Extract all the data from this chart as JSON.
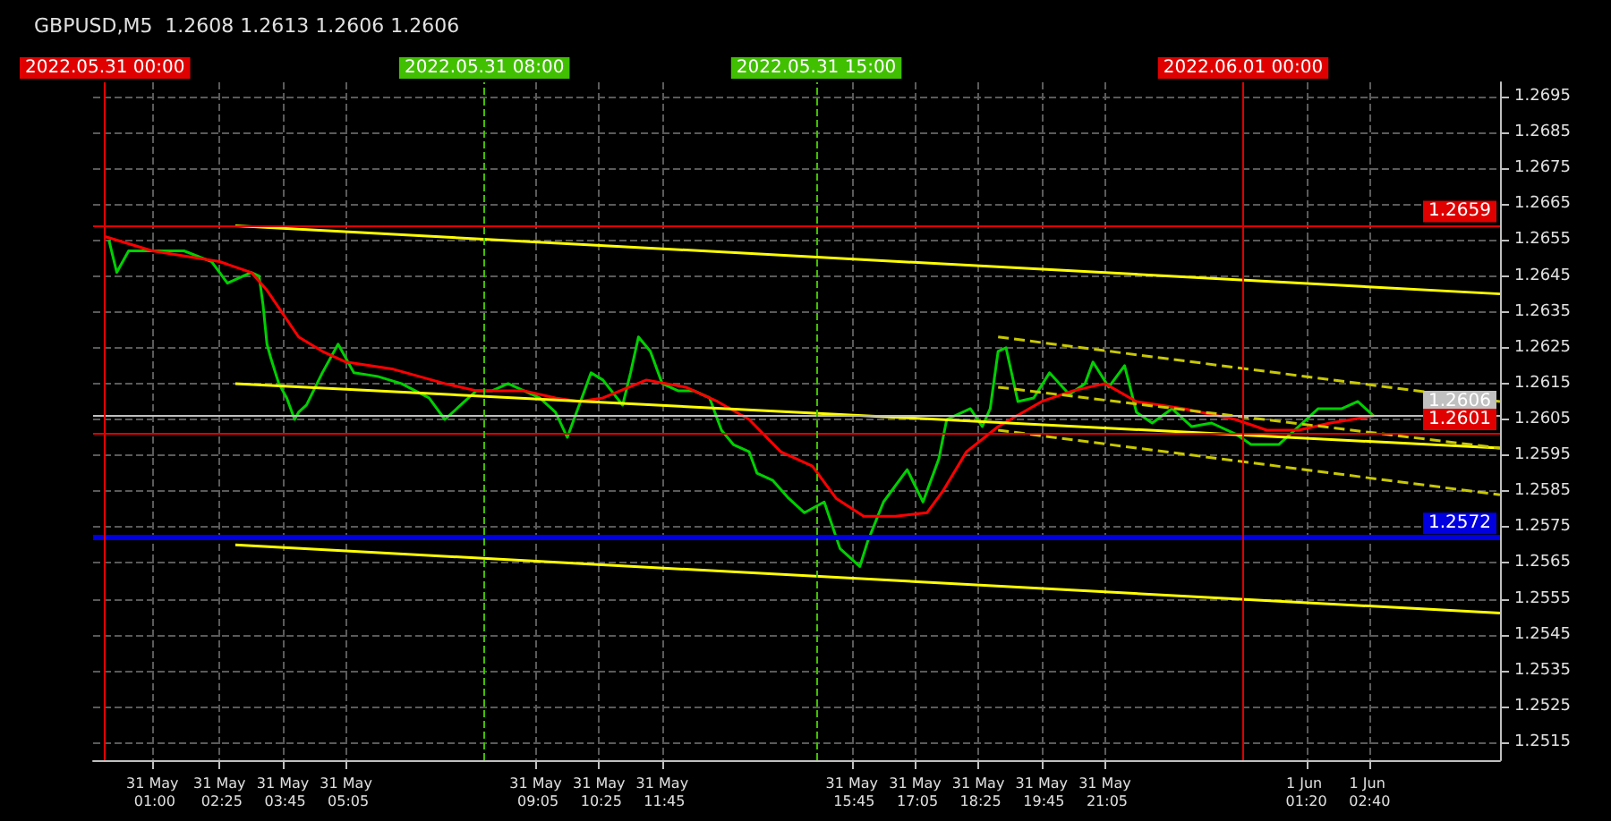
{
  "chart_data": {
    "type": "line",
    "title": "GBPUSD,M5  1.2608 1.2613 1.2606 1.2606",
    "xlim": [
      "2022-05-30T23:45",
      "2022-06-01T05:25"
    ],
    "xticks": [
      {
        "value": "2022-05-31T01:00",
        "label": "31 May 01:00"
      },
      {
        "value": "2022-05-31T02:25",
        "label": "31 May 02:25"
      },
      {
        "value": "2022-05-31T03:45",
        "label": "31 May 03:45"
      },
      {
        "value": "2022-05-31T05:05",
        "label": "31 May 05:05"
      },
      {
        "value": "2022-05-31T09:05",
        "label": "31 May 09:05"
      },
      {
        "value": "2022-05-31T10:25",
        "label": "31 May 10:25"
      },
      {
        "value": "2022-05-31T11:45",
        "label": "31 May 11:45"
      },
      {
        "value": "2022-05-31T15:45",
        "label": "31 May 15:45"
      },
      {
        "value": "2022-05-31T17:05",
        "label": "31 May 17:05"
      },
      {
        "value": "2022-05-31T18:25",
        "label": "31 May 18:25"
      },
      {
        "value": "2022-05-31T19:45",
        "label": "31 May 19:45"
      },
      {
        "value": "2022-05-31T21:05",
        "label": "31 May 21:05"
      },
      {
        "value": "2022-06-01T01:20",
        "label": "1 Jun 01:20"
      },
      {
        "value": "2022-06-01T02:40",
        "label": "1 Jun 02:40"
      }
    ],
    "ylim": [
      1.251,
      1.2699
    ],
    "yticks": [
      1.2515,
      1.2525,
      1.2535,
      1.2545,
      1.2555,
      1.2565,
      1.2575,
      1.2585,
      1.2595,
      1.2605,
      1.2615,
      1.2625,
      1.2635,
      1.2645,
      1.2655,
      1.2665,
      1.2675,
      1.2685,
      1.2695
    ],
    "grid": true,
    "series": [
      {
        "color": "#00d000",
        "x": [
          "2022-05-31T00:05",
          "2022-05-31T00:15",
          "2022-05-31T00:30",
          "2022-05-31T01:00",
          "2022-05-31T01:40",
          "2022-05-31T02:15",
          "2022-05-31T02:35",
          "2022-05-31T02:55",
          "2022-05-31T03:05",
          "2022-05-31T03:15",
          "2022-05-31T03:20",
          "2022-05-31T03:25",
          "2022-05-31T03:30",
          "2022-05-31T03:40",
          "2022-05-31T03:50",
          "2022-05-31T04:00",
          "2022-05-31T04:05",
          "2022-05-31T04:15",
          "2022-05-31T04:35",
          "2022-05-31T04:55",
          "2022-05-31T05:15",
          "2022-05-31T05:45",
          "2022-05-31T06:15",
          "2022-05-31T06:50",
          "2022-05-31T07:10",
          "2022-05-31T07:30",
          "2022-05-31T07:50",
          "2022-05-31T08:10",
          "2022-05-31T08:30",
          "2022-05-31T08:50",
          "2022-05-31T09:10",
          "2022-05-31T09:30",
          "2022-05-31T09:45",
          "2022-05-31T10:00",
          "2022-05-31T10:15",
          "2022-05-31T10:30",
          "2022-05-31T10:55",
          "2022-05-31T11:05",
          "2022-05-31T11:15",
          "2022-05-31T11:30",
          "2022-05-31T11:45",
          "2022-05-31T12:05",
          "2022-05-31T12:25",
          "2022-05-31T12:45",
          "2022-05-31T13:00",
          "2022-05-31T13:15",
          "2022-05-31T13:35",
          "2022-05-31T13:45",
          "2022-05-31T14:05",
          "2022-05-31T14:25",
          "2022-05-31T14:45",
          "2022-05-31T15:10",
          "2022-05-31T15:30",
          "2022-05-31T15:55",
          "2022-05-31T16:05",
          "2022-05-31T16:25",
          "2022-05-31T16:55",
          "2022-05-31T17:15",
          "2022-05-31T17:35",
          "2022-05-31T17:45",
          "2022-05-31T18:15",
          "2022-05-31T18:30",
          "2022-05-31T18:40",
          "2022-05-31T18:50",
          "2022-05-31T19:00",
          "2022-05-31T19:15",
          "2022-05-31T19:35",
          "2022-05-31T19:55",
          "2022-05-31T20:20",
          "2022-05-31T20:40",
          "2022-05-31T20:50",
          "2022-05-31T21:10",
          "2022-05-31T21:30",
          "2022-05-31T21:45",
          "2022-05-31T22:05",
          "2022-05-31T22:30",
          "2022-05-31T22:55",
          "2022-05-31T23:20",
          "2022-05-31T23:50",
          "2022-06-01T00:10",
          "2022-06-01T00:45",
          "2022-06-01T01:10",
          "2022-06-01T01:35",
          "2022-06-01T02:05",
          "2022-06-01T02:25",
          "2022-06-01T02:45"
        ],
        "values": [
          1.2655,
          1.2646,
          1.2652,
          1.2652,
          1.2652,
          1.2649,
          1.2643,
          1.2645,
          1.2646,
          1.2645,
          1.2637,
          1.2626,
          1.2622,
          1.2615,
          1.2611,
          1.2605,
          1.2607,
          1.2609,
          1.2618,
          1.2626,
          1.2618,
          1.2617,
          1.2615,
          1.2611,
          1.2605,
          1.2609,
          1.2613,
          1.2613,
          1.2615,
          1.2613,
          1.2611,
          1.2607,
          1.26,
          1.2609,
          1.2618,
          1.2616,
          1.2609,
          1.2618,
          1.2628,
          1.2624,
          1.2615,
          1.2613,
          1.2613,
          1.2611,
          1.2602,
          1.2598,
          1.2596,
          1.259,
          1.2588,
          1.2583,
          1.2579,
          1.2582,
          1.2569,
          1.2564,
          1.2571,
          1.2582,
          1.2591,
          1.2582,
          1.2594,
          1.2605,
          1.2608,
          1.2603,
          1.2608,
          1.2624,
          1.2625,
          1.261,
          1.2611,
          1.2618,
          1.2612,
          1.2615,
          1.2621,
          1.2614,
          1.262,
          1.2607,
          1.2604,
          1.2608,
          1.2603,
          1.2604,
          1.2601,
          1.2598,
          1.2598,
          1.2603,
          1.2608,
          1.2608,
          1.261,
          1.2606
        ]
      },
      {
        "color": "#ff0000",
        "x": [
          "2022-05-31T00:00",
          "2022-05-31T01:00",
          "2022-05-31T02:25",
          "2022-05-31T03:05",
          "2022-05-31T03:25",
          "2022-05-31T04:05",
          "2022-05-31T04:35",
          "2022-05-31T05:05",
          "2022-05-31T06:05",
          "2022-05-31T07:10",
          "2022-05-31T07:50",
          "2022-05-31T08:50",
          "2022-05-31T09:30",
          "2022-05-31T10:00",
          "2022-05-31T10:30",
          "2022-05-31T11:25",
          "2022-05-31T12:15",
          "2022-05-31T12:55",
          "2022-05-31T13:35",
          "2022-05-31T14:15",
          "2022-05-31T14:55",
          "2022-05-31T15:25",
          "2022-05-31T16:00",
          "2022-05-31T16:40",
          "2022-05-31T17:20",
          "2022-05-31T17:40",
          "2022-05-31T18:10",
          "2022-05-31T18:50",
          "2022-05-31T19:45",
          "2022-05-31T20:25",
          "2022-05-31T21:05",
          "2022-05-31T21:45",
          "2022-05-31T22:45",
          "2022-05-31T23:50",
          "2022-06-01T00:30",
          "2022-06-01T01:10",
          "2022-06-01T01:50",
          "2022-06-01T02:45"
        ],
        "values": [
          1.2656,
          1.2652,
          1.2649,
          1.2646,
          1.2641,
          1.2628,
          1.2624,
          1.2621,
          1.2619,
          1.2615,
          1.2613,
          1.2613,
          1.2611,
          1.261,
          1.2611,
          1.2616,
          1.2614,
          1.261,
          1.2605,
          1.2596,
          1.2592,
          1.2583,
          1.2578,
          1.2578,
          1.2579,
          1.2585,
          1.2596,
          1.2603,
          1.261,
          1.2613,
          1.2615,
          1.261,
          1.2608,
          1.2605,
          1.2602,
          1.2602,
          1.2604,
          1.2606
        ]
      },
      {
        "color": "#ffff00",
        "line_style": "solid",
        "x": [
          "2022-05-31T02:45",
          "2022-06-01T05:25"
        ],
        "values": [
          1.2659,
          1.264
        ]
      },
      {
        "color": "#ffff00",
        "line_style": "solid",
        "x": [
          "2022-05-31T02:45",
          "2022-06-01T05:25"
        ],
        "values": [
          1.2615,
          1.2597
        ]
      },
      {
        "color": "#ffff00",
        "line_style": "solid",
        "x": [
          "2022-05-31T02:45",
          "2022-06-01T05:25"
        ],
        "values": [
          1.257,
          1.2551
        ]
      },
      {
        "color": "#c8c800",
        "line_style": "dashed",
        "x": [
          "2022-05-31T18:50",
          "2022-06-01T05:25"
        ],
        "values": [
          1.2628,
          1.261
        ]
      },
      {
        "color": "#c8c800",
        "line_style": "dashed",
        "x": [
          "2022-05-31T18:50",
          "2022-06-01T05:25"
        ],
        "values": [
          1.2614,
          1.2597
        ]
      },
      {
        "color": "#c8c800",
        "line_style": "dashed",
        "x": [
          "2022-05-31T18:50",
          "2022-06-01T05:25"
        ],
        "values": [
          1.2602,
          1.2584
        ]
      }
    ],
    "ref_lines": [
      {
        "axis": "y",
        "value": 1.2659,
        "label": "1.2659",
        "color": "#e00000",
        "line_style": "solid"
      },
      {
        "axis": "y",
        "value": 1.2606,
        "label": "1.2606",
        "color": "#c0c0c0",
        "line_style": "solid"
      },
      {
        "axis": "y",
        "value": 1.2601,
        "label": "1.2601",
        "color": "#e00000",
        "line_style": "solid"
      },
      {
        "axis": "y",
        "value": 1.2572,
        "label": "1.2572",
        "color": "#0000e0",
        "line_style": "solid"
      },
      {
        "axis": "x",
        "value": "2022-05-31T00:00",
        "label": "2022.05.31 00:00",
        "color": "#e00000",
        "line_style": "solid"
      },
      {
        "axis": "x",
        "value": "2022-05-31T08:00",
        "label": "2022.05.31 08:00",
        "color": "#40c000",
        "line_style": "dashed"
      },
      {
        "axis": "x",
        "value": "2022-05-31T15:00",
        "label": "2022.05.31 15:00",
        "color": "#40c000",
        "line_style": "dashed"
      },
      {
        "axis": "x",
        "value": "2022-06-01T00:00",
        "label": "2022.06.01 00:00",
        "color": "#e00000",
        "line_style": "solid"
      }
    ]
  }
}
